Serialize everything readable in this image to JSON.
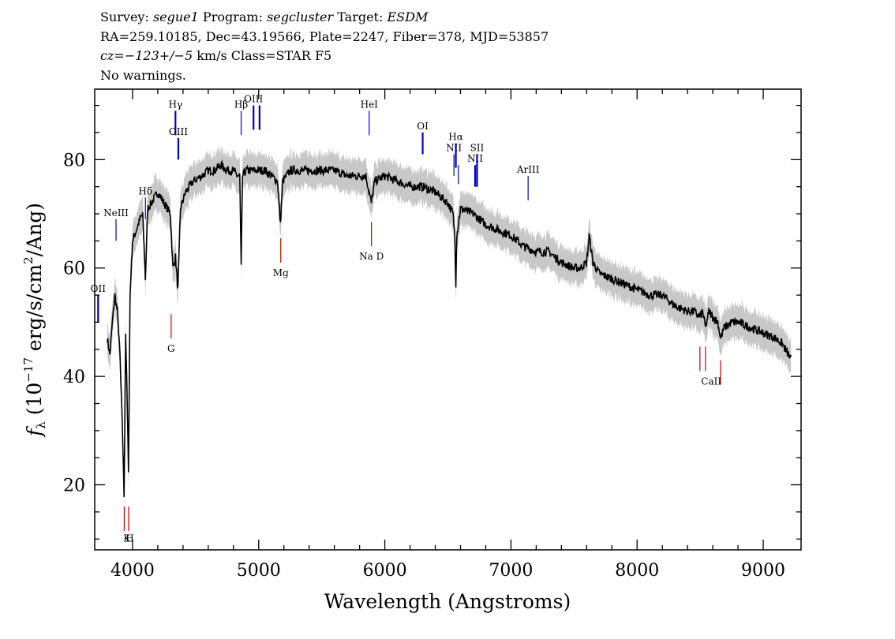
{
  "header": {
    "line1": {
      "survey_label": "Survey:",
      "survey": "segue1",
      "program_label": "Program:",
      "program": "segcluster",
      "target_label": "Target:",
      "target": "ESDM"
    },
    "line2": "RA=259.10185, Dec=43.19566, Plate=2247, Fiber=378, MJD=53857",
    "line3": {
      "cz": "cz=−123+/−5",
      "rest": " km/s Class=STAR F5"
    },
    "line4": "No warnings."
  },
  "chart_data": {
    "type": "line",
    "title": "",
    "xlabel": "Wavelength (Angstroms)",
    "ylabel": "fλ (10⁻¹⁷ erg/s/cm²/Ang)",
    "ylabel_parts": {
      "symbol": "f",
      "sub": "λ",
      "rest1": " (10",
      "exp1": "−17",
      "rest2": " erg/s/cm",
      "exp2": "2",
      "rest3": "/Ang)"
    },
    "xlim": [
      3700,
      9300
    ],
    "ylim": [
      8,
      93
    ],
    "xticks": [
      4000,
      5000,
      6000,
      7000,
      8000,
      9000
    ],
    "yticks": [
      20,
      40,
      60,
      80
    ],
    "colors": {
      "spectrum": "#000000",
      "error_band": "#c8c8c8",
      "emission": "#0000cc",
      "absorption": "#cc0000"
    },
    "series": [
      {
        "x": [
          3800,
          3820,
          3840,
          3860,
          3880,
          3900,
          3920,
          3933,
          3945,
          3955,
          3968,
          3980,
          4000,
          4030,
          4060,
          4080,
          4102,
          4120,
          4150,
          4200,
          4250,
          4300,
          4320,
          4340,
          4360,
          4380,
          4420,
          4480,
          4550,
          4600,
          4650,
          4700,
          4750,
          4800,
          4830,
          4850,
          4861,
          4872,
          4900,
          4950,
          5000,
          5050,
          5100,
          5150,
          5172,
          5190,
          5250,
          5300,
          5400,
          5500,
          5600,
          5700,
          5800,
          5850,
          5893,
          5920,
          6000,
          6100,
          6200,
          6300,
          6400,
          6500,
          6540,
          6555,
          6563,
          6570,
          6600,
          6700,
          6800,
          6900,
          7000,
          7100,
          7200,
          7300,
          7400,
          7500,
          7550,
          7600,
          7620,
          7650,
          7700,
          7800,
          7900,
          8000,
          8100,
          8200,
          8300,
          8400,
          8450,
          8498,
          8520,
          8542,
          8570,
          8600,
          8640,
          8662,
          8690,
          8750,
          8800,
          8900,
          9000,
          9100,
          9150,
          9200,
          9220
        ],
        "y": [
          47,
          44,
          50,
          55,
          52,
          44,
          30,
          18,
          48,
          38,
          23,
          55,
          65,
          67,
          69,
          70,
          58,
          71,
          72,
          74,
          72,
          70,
          60,
          62,
          56,
          71,
          74,
          76,
          77,
          78,
          78,
          79,
          78,
          78,
          77,
          77,
          60,
          77,
          78,
          78,
          78,
          78,
          77,
          76,
          68,
          76,
          78,
          78,
          78,
          78,
          78,
          77,
          77,
          77,
          72,
          76,
          77,
          76,
          75,
          75,
          74,
          72,
          70,
          66,
          57,
          66,
          71,
          70,
          68,
          67,
          66,
          64,
          63,
          63,
          61,
          60,
          60,
          61,
          66,
          61,
          59,
          58,
          57,
          56,
          55,
          55,
          53,
          52,
          52,
          51,
          52,
          49,
          52,
          51,
          50,
          47,
          49,
          50,
          50,
          49,
          48,
          47,
          46,
          44,
          43
        ]
      }
    ],
    "emission_lines": [
      {
        "label": "OII",
        "wavelength": 3727,
        "ytop": 55,
        "ybot": 50,
        "thick": true
      },
      {
        "label": "NeIII",
        "wavelength": 3869,
        "ytop": 69,
        "ybot": 65
      },
      {
        "label": "Hδ",
        "wavelength": 4102,
        "ytop": 73,
        "ybot": 69
      },
      {
        "label": "Hγ",
        "wavelength": 4340,
        "ytop": 89,
        "ybot": 84.5,
        "thick": true
      },
      {
        "label": "OIII",
        "wavelength": 4363,
        "ytop": 84,
        "ybot": 80,
        "thick": true
      },
      {
        "label": "Hβ",
        "wavelength": 4861,
        "ytop": 89,
        "ybot": 84.5
      },
      {
        "label": "OIII",
        "wavelength": 4959,
        "ytop": 90,
        "ybot": 85.5,
        "thick": true
      },
      {
        "label": "",
        "wavelength": 5007,
        "ytop": 90,
        "ybot": 85.5,
        "thick": true
      },
      {
        "label": "HeI",
        "wavelength": 5876,
        "ytop": 89,
        "ybot": 84.5
      },
      {
        "label": "OI",
        "wavelength": 6300,
        "ytop": 85,
        "ybot": 81,
        "thick": true
      },
      {
        "label": "NII",
        "wavelength": 6548,
        "ytop": 81,
        "ybot": 77
      },
      {
        "label": "Hα",
        "wavelength": 6563,
        "ytop": 83,
        "ybot": 78.5,
        "thick": true
      },
      {
        "label": "",
        "wavelength": 6583,
        "ytop": 79,
        "ybot": 75.5
      },
      {
        "label": "NII",
        "wavelength": 6716,
        "ytop": 79,
        "ybot": 75,
        "thick": true
      },
      {
        "label": "SII",
        "wavelength": 6731,
        "ytop": 81,
        "ybot": 75,
        "thick": true
      },
      {
        "label": "ArIII",
        "wavelength": 7136,
        "ytop": 77,
        "ybot": 72.5
      }
    ],
    "absorption_lines": [
      {
        "label": "",
        "wavelength": 3934,
        "ytop": 16,
        "ybot": 11.5
      },
      {
        "label": "",
        "wavelength": 3969,
        "ytop": 16,
        "ybot": 11.5
      },
      {
        "label": "G",
        "wavelength": 4306,
        "ytop": 51.5,
        "ybot": 47
      },
      {
        "label": "Mg",
        "wavelength": 5175,
        "ytop": 65.5,
        "ybot": 61
      },
      {
        "label": "Na D",
        "wavelength": 5894,
        "ytop": 68.5,
        "ybot": 64
      },
      {
        "label": "",
        "wavelength": 8498,
        "ytop": 45.5,
        "ybot": 41
      },
      {
        "label": "",
        "wavelength": 8542,
        "ytop": 45.5,
        "ybot": 41
      },
      {
        "label": "",
        "wavelength": 8662,
        "ytop": 43,
        "ybot": 38.5
      }
    ],
    "extra_labels": [
      {
        "text": "K",
        "wavelength": 3955,
        "y": 9.5
      },
      {
        "text": "H",
        "wavelength": 3978,
        "y": 9.5
      },
      {
        "text": "CaII",
        "wavelength": 8588,
        "y": 38.5
      }
    ]
  }
}
